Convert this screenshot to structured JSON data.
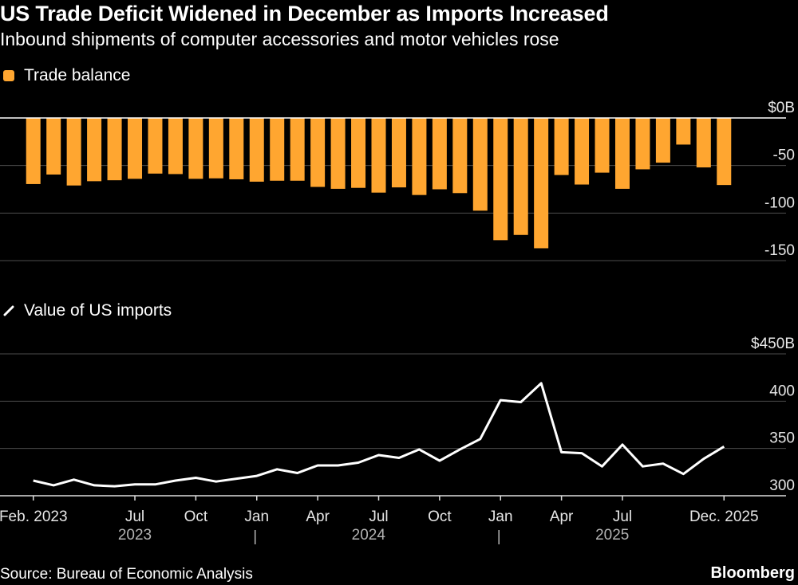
{
  "title": "US Trade Deficit Widened in December as Imports Increased",
  "subtitle": "Inbound shipments of computer accessories and motor vehicles rose",
  "source": "Source: Bureau of Economic Analysis",
  "brand": "Bloomberg",
  "colors": {
    "bar": "#ffa630",
    "line": "#ffffff",
    "grid": "#4d4d4d",
    "zero": "#ffffff"
  },
  "chart_data": [
    {
      "type": "bar",
      "legend": "Trade balance",
      "categories": [
        "Feb 2023",
        "Mar 2023",
        "Apr 2023",
        "May 2023",
        "Jun 2023",
        "Jul 2023",
        "Aug 2023",
        "Sep 2023",
        "Oct 2023",
        "Nov 2023",
        "Dec 2023",
        "Jan 2024",
        "Feb 2024",
        "Mar 2024",
        "Apr 2024",
        "May 2024",
        "Jun 2024",
        "Jul 2024",
        "Aug 2024",
        "Sep 2024",
        "Oct 2024",
        "Nov 2024",
        "Dec 2024",
        "Jan 2025",
        "Feb 2025",
        "Mar 2025",
        "Apr 2025",
        "May 2025",
        "Jun 2025",
        "Jul 2025",
        "Aug 2025",
        "Sep 2025",
        "Oct 2025",
        "Nov 2025",
        "Dec 2025"
      ],
      "values": [
        -69.5,
        -59.5,
        -71,
        -66.5,
        -65.5,
        -64,
        -58.5,
        -59,
        -64,
        -63.5,
        -64.5,
        -67,
        -66,
        -66,
        -72.5,
        -74.5,
        -73.5,
        -78.5,
        -73,
        -81,
        -75,
        -79,
        -97.5,
        -128.5,
        -123,
        -137,
        -60,
        -70,
        -57.5,
        -74.5,
        -54,
        -47,
        -28,
        -52,
        -70.5
      ],
      "ylim": [
        -150,
        0
      ],
      "yticks": [
        0,
        -50,
        -100,
        -150
      ],
      "ytick_labels": [
        "$0B",
        "-50",
        "-100",
        "-150"
      ]
    },
    {
      "type": "line",
      "legend": "Value of US imports",
      "categories": [
        "Feb 2023",
        "Mar 2023",
        "Apr 2023",
        "May 2023",
        "Jun 2023",
        "Jul 2023",
        "Aug 2023",
        "Sep 2023",
        "Oct 2023",
        "Nov 2023",
        "Dec 2023",
        "Jan 2024",
        "Feb 2024",
        "Mar 2024",
        "Apr 2024",
        "May 2024",
        "Jun 2024",
        "Jul 2024",
        "Aug 2024",
        "Sep 2024",
        "Oct 2024",
        "Nov 2024",
        "Dec 2024",
        "Jan 2025",
        "Feb 2025",
        "Mar 2025",
        "Apr 2025",
        "May 2025",
        "Jun 2025",
        "Jul 2025",
        "Aug 2025",
        "Sep 2025",
        "Oct 2025",
        "Nov 2025",
        "Dec 2025"
      ],
      "values": [
        316,
        311,
        317,
        311,
        310,
        312,
        312,
        316,
        319,
        315,
        318,
        321,
        328,
        324,
        332,
        332,
        335,
        343,
        340,
        349,
        337,
        349,
        360,
        401,
        399,
        419,
        346,
        345,
        331,
        354,
        331,
        334,
        323,
        339,
        352
      ],
      "ylim": [
        300,
        450
      ],
      "yticks": [
        450,
        400,
        350,
        300
      ],
      "ytick_labels": [
        "$450B",
        "400",
        "350",
        "300"
      ]
    }
  ],
  "x_axis": {
    "tick_labels": [
      {
        "label": "Feb. 2023",
        "index": 0
      },
      {
        "label": "Jul",
        "index": 5
      },
      {
        "label": "Oct",
        "index": 8
      },
      {
        "label": "Jan",
        "index": 11
      },
      {
        "label": "Apr",
        "index": 14
      },
      {
        "label": "Jul",
        "index": 17
      },
      {
        "label": "Oct",
        "index": 20
      },
      {
        "label": "Jan",
        "index": 23
      },
      {
        "label": "Apr",
        "index": 26
      },
      {
        "label": "Jul",
        "index": 29
      },
      {
        "label": "Dec. 2025",
        "index": 34
      }
    ],
    "year_labels": [
      {
        "label": "2023",
        "start": 0,
        "end": 10
      },
      {
        "label": "2024",
        "start": 11,
        "end": 22
      },
      {
        "label": "2025",
        "start": 23,
        "end": 34
      }
    ],
    "year_separators": [
      "|",
      "|"
    ]
  }
}
